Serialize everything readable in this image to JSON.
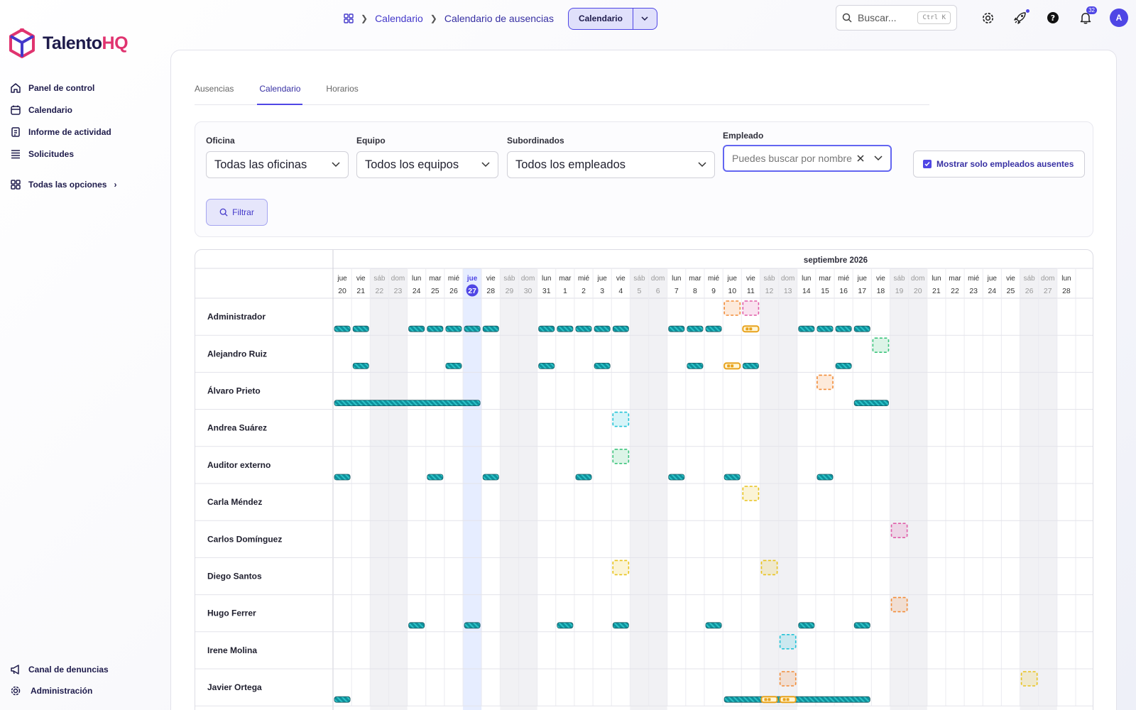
{
  "brand": {
    "logo_part1": "Talento",
    "logo_part2": "HQ"
  },
  "sidebar": {
    "items": [
      {
        "label": "Panel de control",
        "icon": "home-icon"
      },
      {
        "label": "Calendario",
        "icon": "calendar-icon"
      },
      {
        "label": "Informe de actividad",
        "icon": "report-icon"
      },
      {
        "label": "Solicitudes",
        "icon": "list-icon"
      }
    ],
    "all_options": "Todas las opciones",
    "bottom": [
      {
        "label": "Canal de denuncias",
        "icon": "megaphone-icon"
      },
      {
        "label": "Administración",
        "icon": "gear-icon"
      }
    ]
  },
  "breadcrumb": {
    "items": [
      "Calendario",
      "Calendario de ausencias"
    ]
  },
  "view_switch": {
    "label": "Calendario"
  },
  "search": {
    "placeholder": "Buscar...",
    "shortcut": "Ctrl K"
  },
  "notifications": {
    "count": "32"
  },
  "user": {
    "initial": "A"
  },
  "tabs": [
    "Ausencias",
    "Calendario",
    "Horarios"
  ],
  "filters": {
    "office": {
      "label": "Oficina",
      "value": "Todas las oficinas"
    },
    "team": {
      "label": "Equipo",
      "value": "Todos los equipos"
    },
    "subordinates": {
      "label": "Subordinados",
      "value": "Todos los empleados"
    },
    "employee": {
      "label": "Empleado",
      "placeholder": "Puedes buscar por nombre"
    },
    "only_absent": {
      "label": "Mostrar solo empleados ausentes",
      "checked": true
    },
    "filter_button": "Filtrar"
  },
  "calendar": {
    "month_label": "septiembre 2026",
    "today_index": 7,
    "days": [
      {
        "w": "jue",
        "d": "20"
      },
      {
        "w": "vie",
        "d": "21"
      },
      {
        "w": "sáb",
        "d": "22"
      },
      {
        "w": "dom",
        "d": "23"
      },
      {
        "w": "lun",
        "d": "24"
      },
      {
        "w": "mar",
        "d": "25"
      },
      {
        "w": "mié",
        "d": "26"
      },
      {
        "w": "jue",
        "d": "27"
      },
      {
        "w": "vie",
        "d": "28"
      },
      {
        "w": "sáb",
        "d": "29"
      },
      {
        "w": "dom",
        "d": "30"
      },
      {
        "w": "lun",
        "d": "31"
      },
      {
        "w": "mar",
        "d": "1"
      },
      {
        "w": "mié",
        "d": "2"
      },
      {
        "w": "jue",
        "d": "3"
      },
      {
        "w": "vie",
        "d": "4"
      },
      {
        "w": "sáb",
        "d": "5"
      },
      {
        "w": "dom",
        "d": "6"
      },
      {
        "w": "lun",
        "d": "7"
      },
      {
        "w": "mar",
        "d": "8"
      },
      {
        "w": "mié",
        "d": "9"
      },
      {
        "w": "jue",
        "d": "10"
      },
      {
        "w": "vie",
        "d": "11"
      },
      {
        "w": "sáb",
        "d": "12"
      },
      {
        "w": "dom",
        "d": "13"
      },
      {
        "w": "lun",
        "d": "14"
      },
      {
        "w": "mar",
        "d": "15"
      },
      {
        "w": "mié",
        "d": "16"
      },
      {
        "w": "jue",
        "d": "17"
      },
      {
        "w": "vie",
        "d": "18"
      },
      {
        "w": "sáb",
        "d": "19"
      },
      {
        "w": "dom",
        "d": "20"
      },
      {
        "w": "lun",
        "d": "21"
      },
      {
        "w": "mar",
        "d": "22"
      },
      {
        "w": "mié",
        "d": "23"
      },
      {
        "w": "jue",
        "d": "24"
      },
      {
        "w": "vie",
        "d": "25"
      },
      {
        "w": "sáb",
        "d": "26"
      },
      {
        "w": "dom",
        "d": "27"
      },
      {
        "w": "lun",
        "d": "28"
      }
    ],
    "absence_colors": {
      "orange": "#f28c38",
      "pink": "#e05ca8",
      "green": "#3cc47c",
      "cyan": "#22c3d6",
      "yellow": "#e8c21c"
    },
    "shift_color": "#0e8f9c",
    "employees": [
      {
        "name": "Administrador",
        "boxes": [
          [
            21,
            "orange"
          ],
          [
            22,
            "pink"
          ]
        ],
        "shifts": [
          [
            0,
            1
          ],
          [
            1,
            1
          ],
          [
            4,
            1
          ],
          [
            5,
            1
          ],
          [
            6,
            1
          ],
          [
            7,
            1
          ],
          [
            8,
            1
          ],
          [
            11,
            1
          ],
          [
            12,
            1
          ],
          [
            13,
            1
          ],
          [
            14,
            1
          ],
          [
            15,
            1
          ],
          [
            18,
            1
          ],
          [
            19,
            1
          ],
          [
            20,
            1
          ],
          [
            25,
            1
          ],
          [
            26,
            1
          ],
          [
            27,
            1
          ],
          [
            28,
            1
          ]
        ],
        "partial": [
          22
        ]
      },
      {
        "name": "Alejandro Ruiz",
        "boxes": [
          [
            29,
            "green"
          ]
        ],
        "shifts": [
          [
            1,
            1
          ],
          [
            6,
            1
          ],
          [
            11,
            1
          ],
          [
            14,
            1
          ],
          [
            19,
            1
          ],
          [
            22,
            1
          ],
          [
            27,
            1
          ]
        ],
        "partial": [
          21
        ]
      },
      {
        "name": "Álvaro Prieto",
        "boxes": [
          [
            26,
            "orange"
          ]
        ],
        "shifts": [
          [
            0,
            8
          ],
          [
            28,
            2
          ]
        ],
        "partial": []
      },
      {
        "name": "Andrea Suárez",
        "boxes": [
          [
            15,
            "cyan"
          ]
        ],
        "shifts": [],
        "partial": []
      },
      {
        "name": "Auditor externo",
        "boxes": [
          [
            15,
            "green"
          ]
        ],
        "shifts": [
          [
            0,
            1
          ],
          [
            5,
            1
          ],
          [
            8,
            1
          ],
          [
            13,
            1
          ],
          [
            18,
            1
          ],
          [
            21,
            1
          ],
          [
            26,
            1
          ]
        ],
        "partial": []
      },
      {
        "name": "Carla Méndez",
        "boxes": [
          [
            22,
            "yellow"
          ]
        ],
        "shifts": [],
        "partial": []
      },
      {
        "name": "Carlos Domínguez",
        "boxes": [
          [
            30,
            "pink"
          ]
        ],
        "shifts": [],
        "partial": []
      },
      {
        "name": "Diego Santos",
        "boxes": [
          [
            15,
            "yellow"
          ],
          [
            23,
            "yellow"
          ]
        ],
        "shifts": [],
        "partial": []
      },
      {
        "name": "Hugo Ferrer",
        "boxes": [
          [
            30,
            "orange"
          ]
        ],
        "shifts": [
          [
            4,
            1
          ],
          [
            7,
            1
          ],
          [
            12,
            1
          ],
          [
            15,
            1
          ],
          [
            20,
            1
          ],
          [
            25,
            1
          ],
          [
            28,
            1
          ]
        ],
        "partial": []
      },
      {
        "name": "Irene Molina",
        "boxes": [
          [
            24,
            "cyan"
          ]
        ],
        "shifts": [],
        "partial": []
      },
      {
        "name": "Javier Ortega",
        "boxes": [
          [
            24,
            "orange"
          ],
          [
            37,
            "yellow"
          ]
        ],
        "shifts": [
          [
            0,
            1
          ],
          [
            21,
            8
          ]
        ],
        "partial": [
          23,
          24
        ]
      }
    ]
  }
}
